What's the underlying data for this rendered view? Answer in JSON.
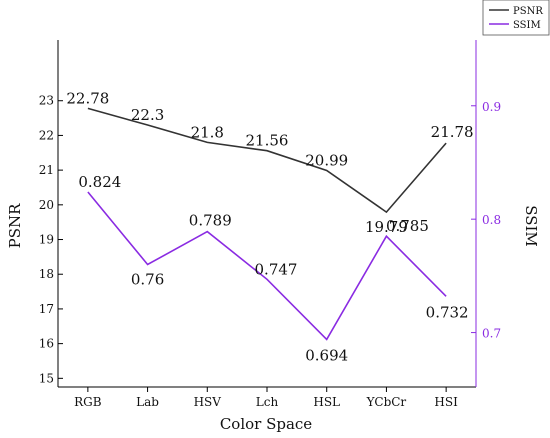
{
  "chart_data": {
    "type": "line",
    "title": "",
    "xlabel": "Color Space",
    "ylabel": "PSNR",
    "y2label": "SSIM",
    "categories": [
      "RGB",
      "Lab",
      "HSV",
      "Lch",
      "HSL",
      "YCbCr",
      "HSI"
    ],
    "ylim": [
      14.75,
      24.75
    ],
    "y2lim": [
      0.652,
      0.958
    ],
    "yticks": [
      15,
      16,
      17,
      18,
      19,
      20,
      21,
      22,
      23
    ],
    "y2ticks": [
      0.7,
      0.8,
      0.9
    ],
    "legend_position": "top-right",
    "series": [
      {
        "name": "PSNR",
        "axis": "left",
        "color": "#333333",
        "values": [
          22.78,
          22.3,
          21.8,
          21.56,
          20.99,
          19.79,
          21.78
        ],
        "labels": [
          "22.78",
          "22.3",
          "21.8",
          "21.56",
          "20.99",
          "19.79",
          "21.78"
        ]
      },
      {
        "name": "SSIM",
        "axis": "right",
        "color": "#8a2be2",
        "values": [
          0.824,
          0.76,
          0.789,
          0.747,
          0.694,
          0.785,
          0.732
        ],
        "labels": [
          "0.824",
          "0.76",
          "0.789",
          "0.747",
          "0.694",
          "0.785",
          "0.732"
        ]
      }
    ]
  }
}
